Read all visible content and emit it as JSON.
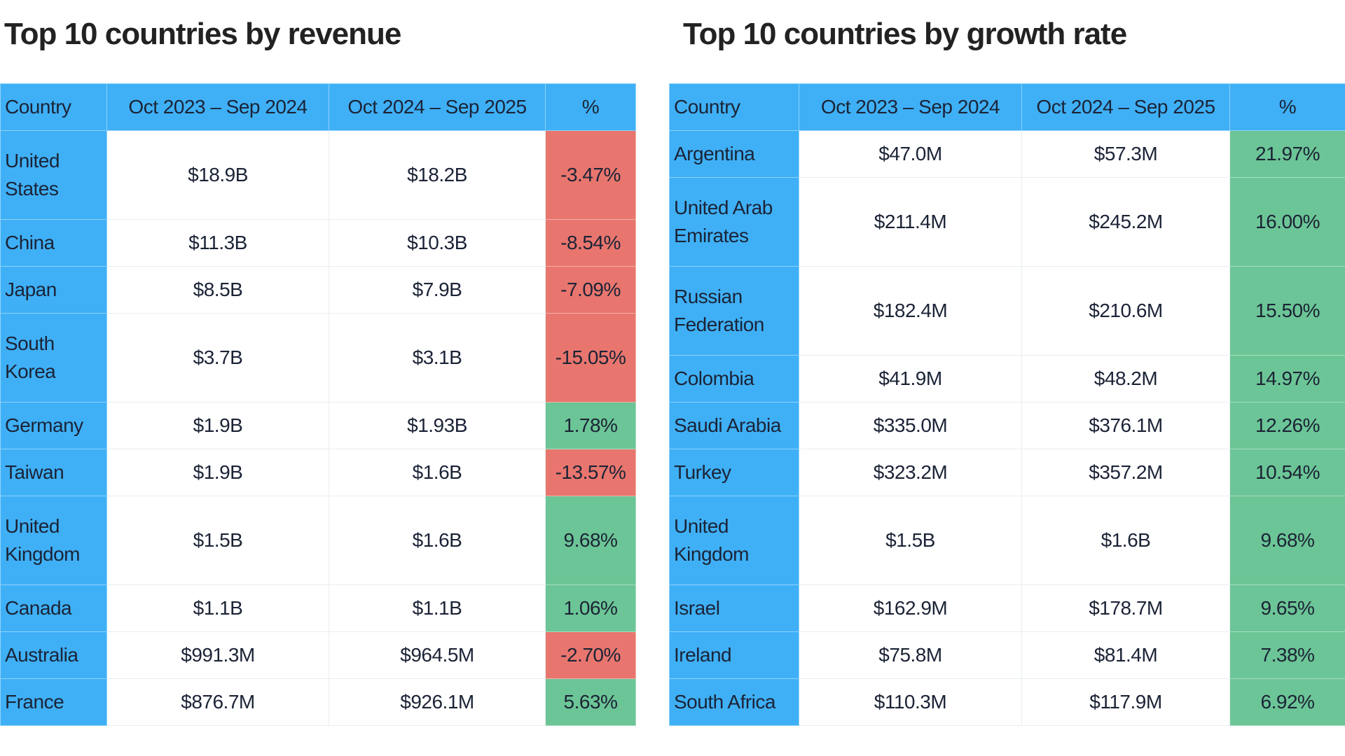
{
  "colors": {
    "header": "#3fb0f6",
    "negative": "#e8766e",
    "positive": "#6cc596"
  },
  "revenue": {
    "title": "Top 10 countries by revenue",
    "headers": [
      "Country",
      "Oct 2023 – Sep 2024",
      "Oct 2024 – Sep 2025",
      "%"
    ],
    "rows": [
      {
        "country": "United States",
        "prev": "$18.9B",
        "curr": "$18.2B",
        "pct": "-3.47%"
      },
      {
        "country": "China",
        "prev": "$11.3B",
        "curr": "$10.3B",
        "pct": "-8.54%"
      },
      {
        "country": "Japan",
        "prev": "$8.5B",
        "curr": "$7.9B",
        "pct": "-7.09%"
      },
      {
        "country": "South Korea",
        "prev": "$3.7B",
        "curr": "$3.1B",
        "pct": "-15.05%"
      },
      {
        "country": "Germany",
        "prev": "$1.9B",
        "curr": "$1.93B",
        "pct": "1.78%"
      },
      {
        "country": "Taiwan",
        "prev": "$1.9B",
        "curr": "$1.6B",
        "pct": "-13.57%"
      },
      {
        "country": "United Kingdom",
        "prev": "$1.5B",
        "curr": "$1.6B",
        "pct": "9.68%"
      },
      {
        "country": "Canada",
        "prev": "$1.1B",
        "curr": "$1.1B",
        "pct": "1.06%"
      },
      {
        "country": "Australia",
        "prev": "$991.3M",
        "curr": "$964.5M",
        "pct": "-2.70%"
      },
      {
        "country": "France",
        "prev": "$876.7M",
        "curr": "$926.1M",
        "pct": "5.63%"
      }
    ]
  },
  "growth": {
    "title": "Top 10 countries by growth rate",
    "headers": [
      "Country",
      "Oct 2023 – Sep 2024",
      "Oct 2024 – Sep 2025",
      "%"
    ],
    "rows": [
      {
        "country": "Argentina",
        "prev": "$47.0M",
        "curr": "$57.3M",
        "pct": "21.97%"
      },
      {
        "country": "United Arab Emirates",
        "prev": "$211.4M",
        "curr": "$245.2M",
        "pct": "16.00%"
      },
      {
        "country": "Russian Federation",
        "prev": "$182.4M",
        "curr": "$210.6M",
        "pct": "15.50%"
      },
      {
        "country": "Colombia",
        "prev": "$41.9M",
        "curr": "$48.2M",
        "pct": "14.97%"
      },
      {
        "country": "Saudi Arabia",
        "prev": "$335.0M",
        "curr": "$376.1M",
        "pct": "12.26%"
      },
      {
        "country": "Turkey",
        "prev": "$323.2M",
        "curr": "$357.2M",
        "pct": "10.54%"
      },
      {
        "country": "United Kingdom",
        "prev": "$1.5B",
        "curr": "$1.6B",
        "pct": "9.68%"
      },
      {
        "country": "Israel",
        "prev": "$162.9M",
        "curr": "$178.7M",
        "pct": "9.65%"
      },
      {
        "country": "Ireland",
        "prev": "$75.8M",
        "curr": "$81.4M",
        "pct": "7.38%"
      },
      {
        "country": "South Africa",
        "prev": "$110.3M",
        "curr": "$117.9M",
        "pct": "6.92%"
      }
    ]
  }
}
